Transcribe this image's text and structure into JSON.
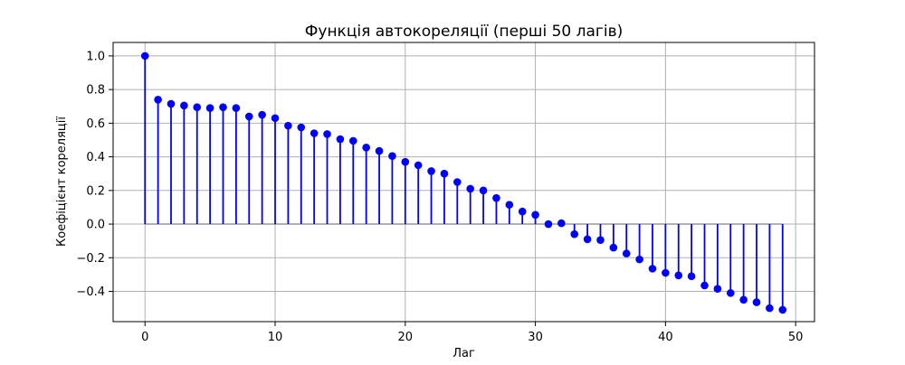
{
  "chart_data": {
    "type": "stem",
    "title": "Функція автокореляції (перші 50 лагів)",
    "xlabel": "Лаг",
    "ylabel": "Коефіцієнт кореляції",
    "xlim": [
      -2.45,
      51.45
    ],
    "ylim": [
      -0.58,
      1.08
    ],
    "xticks": [
      0,
      10,
      20,
      30,
      40,
      50
    ],
    "yticks": [
      -0.4,
      -0.2,
      0.0,
      0.2,
      0.4,
      0.6,
      0.8,
      1.0
    ],
    "xtick_labels": [
      "0",
      "10",
      "20",
      "30",
      "40",
      "50"
    ],
    "ytick_labels": [
      "−0.4",
      "−0.2",
      "0.0",
      "0.2",
      "0.4",
      "0.6",
      "0.8",
      "1.0"
    ],
    "grid": true,
    "baseline": 0,
    "colors": {
      "stem": "#0000ff",
      "marker": "#0000ff",
      "baseline": "#808080",
      "grid": "#b0b0b0"
    },
    "x": [
      0,
      1,
      2,
      3,
      4,
      5,
      6,
      7,
      8,
      9,
      10,
      11,
      12,
      13,
      14,
      15,
      16,
      17,
      18,
      19,
      20,
      21,
      22,
      23,
      24,
      25,
      26,
      27,
      28,
      29,
      30,
      31,
      32,
      33,
      34,
      35,
      36,
      37,
      38,
      39,
      40,
      41,
      42,
      43,
      44,
      45,
      46,
      47,
      48,
      49
    ],
    "values": [
      1.0,
      0.74,
      0.715,
      0.705,
      0.695,
      0.69,
      0.695,
      0.69,
      0.64,
      0.65,
      0.63,
      0.585,
      0.575,
      0.54,
      0.535,
      0.505,
      0.495,
      0.455,
      0.435,
      0.405,
      0.37,
      0.35,
      0.315,
      0.3,
      0.25,
      0.21,
      0.2,
      0.155,
      0.115,
      0.075,
      0.055,
      0.0,
      0.005,
      -0.06,
      -0.09,
      -0.095,
      -0.14,
      -0.175,
      -0.21,
      -0.265,
      -0.29,
      -0.305,
      -0.31,
      -0.365,
      -0.385,
      -0.41,
      -0.45,
      -0.465,
      -0.5,
      -0.51
    ]
  }
}
